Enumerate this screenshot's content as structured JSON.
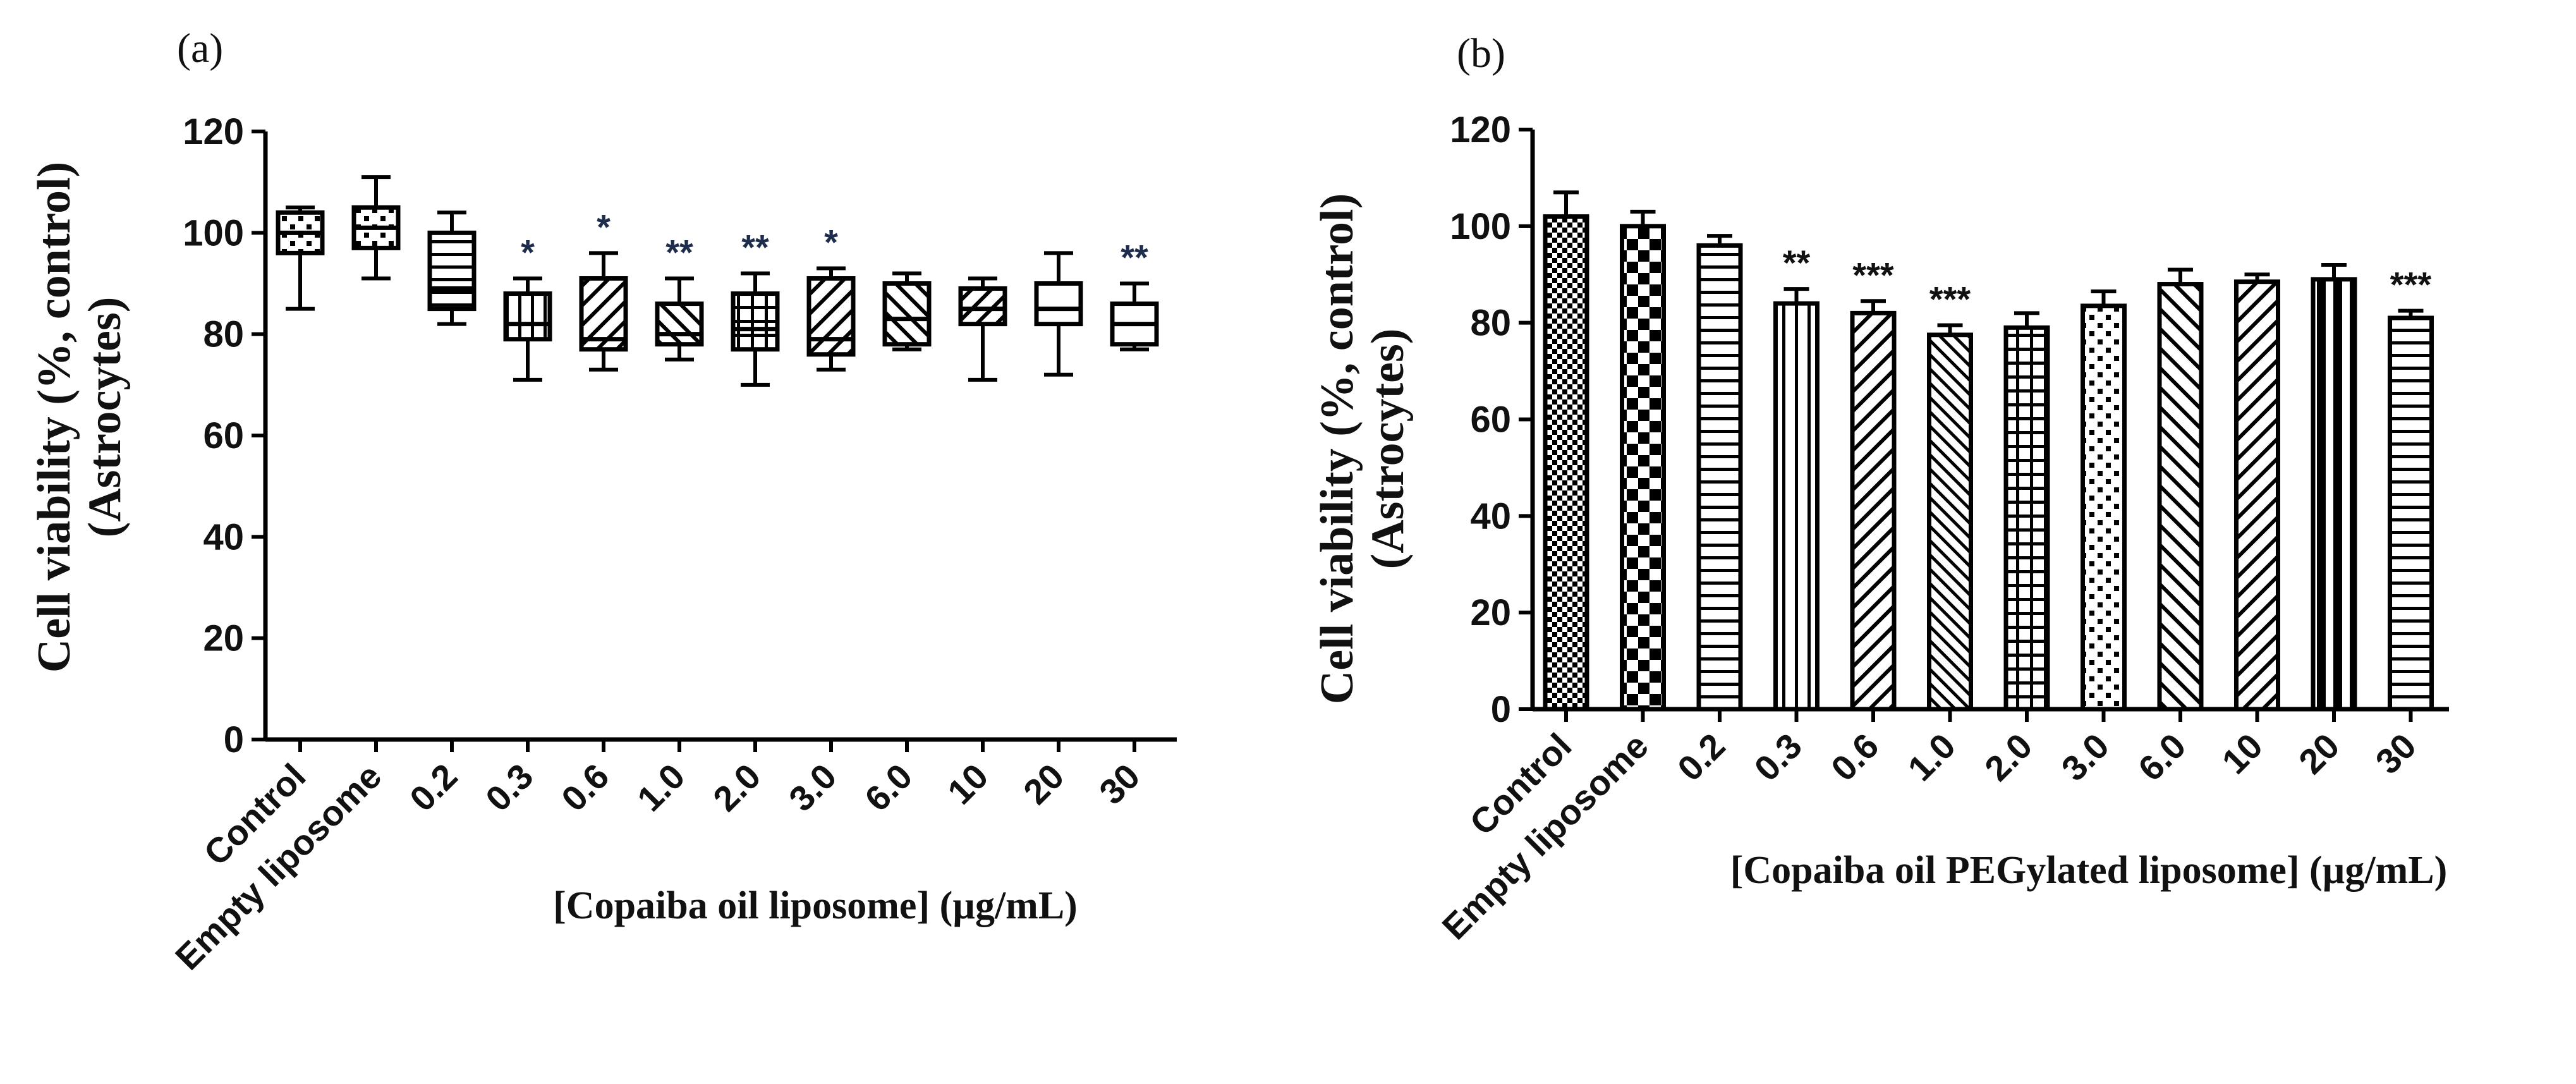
{
  "chart_data": [
    {
      "type": "box",
      "panel_label": "(a)",
      "ylabel_line1": "Cell viability (%, control)",
      "ylabel_line2": "(Astrocytes)",
      "xlabel": "[Copaiba oil liposome] (µg/mL)",
      "ylim": [
        0,
        120
      ],
      "yticks": [
        0,
        20,
        40,
        60,
        80,
        100,
        120
      ],
      "categories": [
        "Control",
        "Empty liposome",
        "0.2",
        "0.3",
        "0.6",
        "1.0",
        "2.0",
        "3.0",
        "6.0",
        "10",
        "20",
        "30"
      ],
      "boxes": [
        {
          "min": 85,
          "q1": 96,
          "median": 100,
          "q3": 104,
          "max": 105,
          "pattern": "dots",
          "sig": ""
        },
        {
          "min": 91,
          "q1": 97,
          "median": 101,
          "q3": 105,
          "max": 111,
          "pattern": "dots",
          "sig": ""
        },
        {
          "min": 82,
          "q1": 85,
          "median": 89,
          "q3": 100,
          "max": 104,
          "pattern": "hlines",
          "sig": ""
        },
        {
          "min": 71,
          "q1": 79,
          "median": 82,
          "q3": 88,
          "max": 91,
          "pattern": "vlines",
          "sig": "*"
        },
        {
          "min": 73,
          "q1": 77,
          "median": 79,
          "q3": 91,
          "max": 96,
          "pattern": "diag",
          "sig": "*"
        },
        {
          "min": 75,
          "q1": 78,
          "median": 80,
          "q3": 86,
          "max": 91,
          "pattern": "diagrev",
          "sig": "**"
        },
        {
          "min": 70,
          "q1": 77,
          "median": 81,
          "q3": 88,
          "max": 92,
          "pattern": "grid",
          "sig": "**"
        },
        {
          "min": 73,
          "q1": 76,
          "median": 79,
          "q3": 91,
          "max": 93,
          "pattern": "diag",
          "sig": "*"
        },
        {
          "min": 77,
          "q1": 78,
          "median": 83,
          "q3": 90,
          "max": 92,
          "pattern": "diagrev",
          "sig": ""
        },
        {
          "min": 71,
          "q1": 82,
          "median": 85,
          "q3": 89,
          "max": 91,
          "pattern": "diag",
          "sig": ""
        },
        {
          "min": 72,
          "q1": 82,
          "median": 85,
          "q3": 90,
          "max": 96,
          "pattern": "none",
          "sig": ""
        },
        {
          "min": 77,
          "q1": 78,
          "median": 82,
          "q3": 86,
          "max": 90,
          "pattern": "none",
          "sig": "**"
        }
      ]
    },
    {
      "type": "bar",
      "panel_label": "(b)",
      "ylabel_line1": "Cell viability (%, control)",
      "ylabel_line2": "(Astrocytes)",
      "xlabel": "[Copaiba oil PEGylated liposome] (µg/mL)",
      "ylim": [
        0,
        120
      ],
      "yticks": [
        0,
        20,
        40,
        60,
        80,
        100,
        120
      ],
      "categories": [
        "Control",
        "Empty liposome",
        "0.2",
        "0.3",
        "0.6",
        "1.0",
        "2.0",
        "3.0",
        "6.0",
        "10",
        "20",
        "30"
      ],
      "values": [
        102,
        100,
        96,
        84,
        82,
        77.5,
        79,
        83.5,
        88,
        88.5,
        89,
        81
      ],
      "errors": [
        5,
        3,
        2,
        3,
        2.5,
        2,
        3,
        3,
        3,
        1.5,
        3,
        1.5
      ],
      "patterns": [
        "checkfine",
        "checker",
        "hlines",
        "vlines",
        "diag",
        "diagrev2",
        "grid",
        "dots",
        "diagrev",
        "diag",
        "vthick",
        "hlines"
      ],
      "sig": [
        "",
        "",
        "",
        "**",
        "***",
        "***",
        "",
        "",
        "",
        "",
        "",
        "***"
      ]
    }
  ]
}
